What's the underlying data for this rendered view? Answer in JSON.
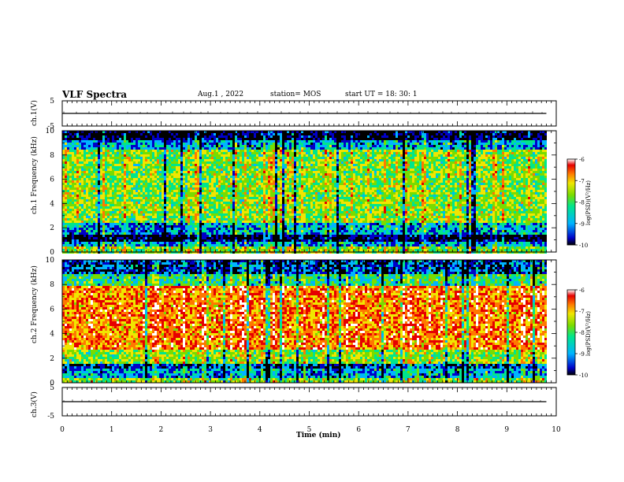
{
  "header": {
    "title": "VLF Spectra",
    "date": "Aug.1 , 2022",
    "station": "station= MOS",
    "start_ut": "start UT = 18: 30: 1"
  },
  "colorbar": {
    "label": "log(PSD)(V²/Hz)",
    "ticks": [
      "-6",
      "-7",
      "-8",
      "-9",
      "-10"
    ]
  },
  "chart_data": [
    {
      "type": "line",
      "ylabel": "ch.1(V)",
      "ylim": [
        -5,
        5
      ],
      "yticks": [
        "5",
        "-5"
      ],
      "x": [
        0,
        9.8
      ],
      "y": [
        0,
        0
      ]
    },
    {
      "type": "heatmap",
      "ylabel": "ch.1 Frequency (kHz)",
      "xlim": [
        0,
        10
      ],
      "ylim": [
        0,
        10
      ],
      "yticks": [
        "0",
        "2",
        "4",
        "6",
        "8",
        "10"
      ],
      "data_end_min": 9.8,
      "colorscale": [
        "#000000",
        "#0000c8",
        "#00b4ff",
        "#00e68c",
        "#78dc00",
        "#f0e600",
        "#ff7800",
        "#e60000",
        "#ffffff"
      ],
      "bands": [
        {
          "from_khz": 0,
          "to_khz": 0.5,
          "level": "-8"
        },
        {
          "from_khz": 0.5,
          "to_khz": 1.0,
          "level": "-9"
        },
        {
          "from_khz": 1.0,
          "to_khz": 1.6,
          "level": "-10"
        },
        {
          "from_khz": 1.6,
          "to_khz": 2.5,
          "level": "-9"
        },
        {
          "from_khz": 2.5,
          "to_khz": 8.5,
          "level": "-8"
        },
        {
          "from_khz": 8.5,
          "to_khz": 9.3,
          "level": "-9"
        },
        {
          "from_khz": 9.3,
          "to_khz": 10,
          "level": "-10"
        }
      ]
    },
    {
      "type": "heatmap",
      "ylabel": "ch.2 Frequency (kHz)",
      "xlim": [
        0,
        10
      ],
      "ylim": [
        0,
        10
      ],
      "yticks": [
        "0",
        "2",
        "4",
        "6",
        "8",
        "10"
      ],
      "data_end_min": 9.8,
      "colorscale": [
        "#000000",
        "#0000c8",
        "#00b4ff",
        "#00e68c",
        "#78dc00",
        "#f0e600",
        "#ff7800",
        "#e60000",
        "#ffffff"
      ],
      "bands": [
        {
          "from_khz": 0,
          "to_khz": 0.5,
          "level": "-8"
        },
        {
          "from_khz": 0.5,
          "to_khz": 1.2,
          "level": "-9"
        },
        {
          "from_khz": 1.2,
          "to_khz": 1.7,
          "level": "-9.5"
        },
        {
          "from_khz": 1.7,
          "to_khz": 2.8,
          "level": "-8"
        },
        {
          "from_khz": 2.8,
          "to_khz": 7.9,
          "level": "-7"
        },
        {
          "from_khz": 7.9,
          "to_khz": 9.0,
          "level": "-8.5"
        },
        {
          "from_khz": 9.0,
          "to_khz": 10,
          "level": "-9.5"
        }
      ]
    },
    {
      "type": "line",
      "ylabel": "ch.3(V)",
      "ylim": [
        -5,
        5
      ],
      "yticks": [
        "5",
        "-5"
      ],
      "x": [
        0,
        9.8
      ],
      "y": [
        0,
        0
      ]
    }
  ],
  "xaxis": {
    "label": "Time (min)",
    "ticks": [
      "0",
      "1",
      "2",
      "3",
      "4",
      "5",
      "6",
      "7",
      "8",
      "9",
      "10"
    ],
    "range": [
      0,
      10
    ]
  }
}
